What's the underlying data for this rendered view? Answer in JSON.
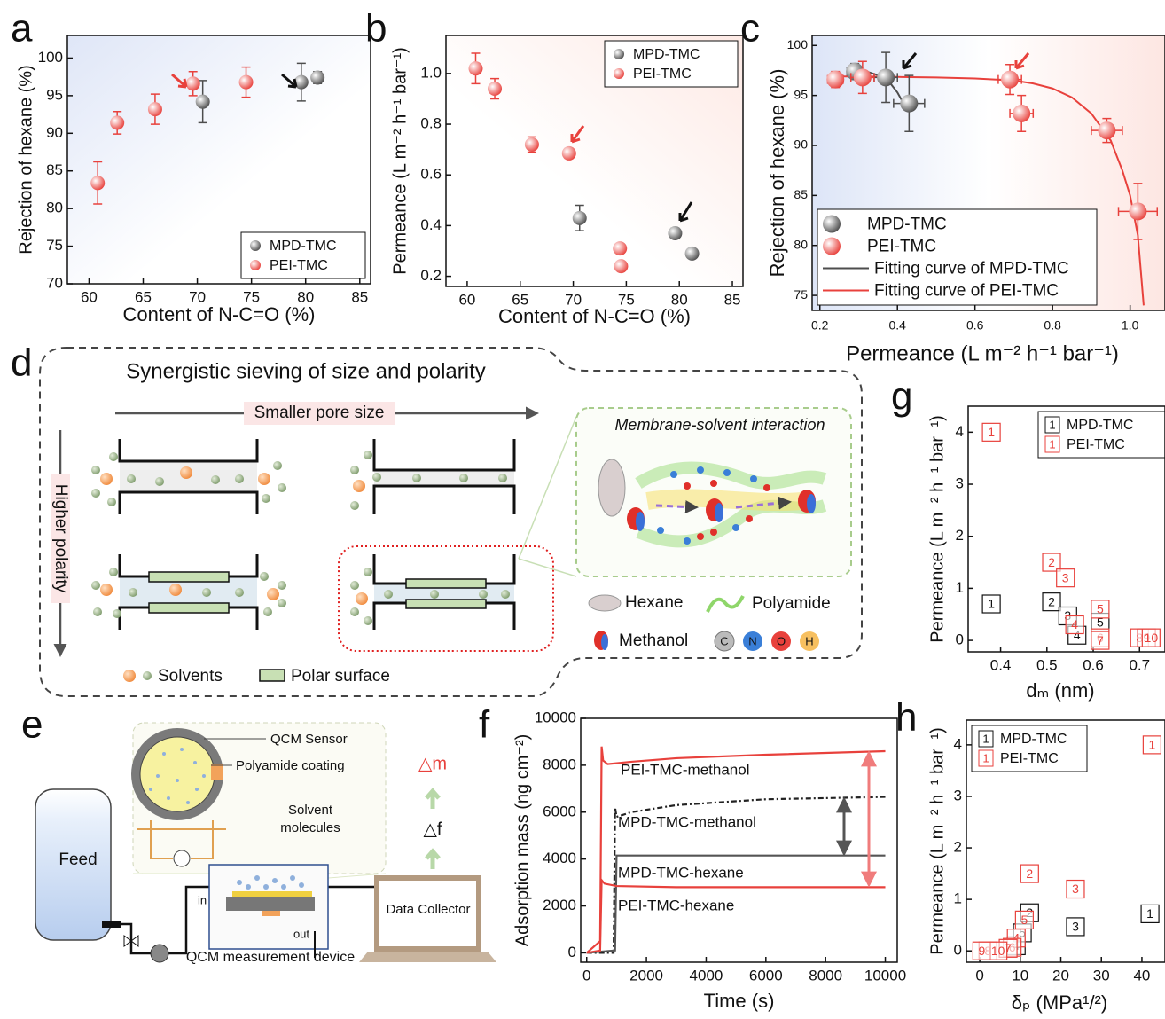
{
  "chart_data": [
    {
      "panel": "a",
      "type": "scatter",
      "marker": "sphere",
      "x_label": "Content of N-C=O (%)",
      "y_label": "Rejection of hexane (%)",
      "xlim": [
        58,
        86
      ],
      "ylim": [
        70,
        103
      ],
      "xticks": [
        60,
        65,
        70,
        75,
        80,
        85
      ],
      "yticks": [
        70,
        75,
        80,
        85,
        90,
        95,
        100
      ],
      "legend": "lower right",
      "series": [
        {
          "name": "MPD-TMC",
          "color": "#4d4d4d",
          "x": [
            70.5,
            79.6,
            81.1
          ],
          "values": [
            94.2,
            96.8,
            97.4
          ],
          "errors": [
            2.8,
            2.5,
            0.8
          ]
        },
        {
          "name": "PEI-TMC",
          "color": "#e8413c",
          "x": [
            60.8,
            62.6,
            66.1,
            69.6,
            74.5
          ],
          "values": [
            83.4,
            91.4,
            93.2,
            96.6,
            96.8
          ],
          "errors": [
            2.8,
            1.5,
            2.0,
            1.6,
            2.0
          ]
        }
      ]
    },
    {
      "panel": "b",
      "type": "scatter",
      "marker": "sphere",
      "x_label": "Content of N-C=O (%)",
      "y_label": "Permeance (L m⁻² h⁻¹ bar⁻¹)",
      "xlim": [
        58,
        86
      ],
      "ylim": [
        0.16,
        1.15
      ],
      "xticks": [
        60,
        65,
        70,
        75,
        80,
        85
      ],
      "yticks": [
        0.2,
        0.4,
        0.6,
        0.8,
        {
          "value": 1,
          "label": "1.0"
        }
      ],
      "legend": "upper right",
      "series": [
        {
          "name": "MPD-TMC",
          "color": "#4d4d4d",
          "x": [
            70.6,
            79.6,
            81.2
          ],
          "values": [
            0.43,
            0.37,
            0.29
          ],
          "errors": [
            0.05,
            0.02,
            null
          ]
        },
        {
          "name": "PEI-TMC",
          "color": "#e8413c",
          "x": [
            60.8,
            62.6,
            66.1,
            69.6,
            74.4,
            74.5
          ],
          "values": [
            1.02,
            0.94,
            0.72,
            0.685,
            0.31,
            0.24
          ],
          "errors": [
            0.06,
            0.04,
            0.03,
            0.02,
            null,
            null
          ]
        }
      ]
    },
    {
      "panel": "c",
      "type": "scatter",
      "marker": "sphere",
      "x_label": "Permeance (L m⁻² h⁻¹ bar⁻¹)",
      "y_label": "Rejection of hexane (%)",
      "xlim": [
        0.18,
        1.09
      ],
      "ylim": [
        73.5,
        101
      ],
      "xticks": [
        0.2,
        0.4,
        0.6,
        0.8,
        {
          "value": 1,
          "label": "1.0"
        }
      ],
      "yticks": [
        75,
        80,
        85,
        90,
        95,
        100
      ],
      "legend": "lower left",
      "series": [
        {
          "name": "MPD-TMC",
          "color": "#4d4d4d",
          "x": [
            0.29,
            0.37,
            0.43
          ],
          "values": [
            97.4,
            96.8,
            94.2
          ],
          "errors": [
            0.8,
            2.5,
            2.8
          ],
          "xerrors": [
            0.02,
            0.03,
            0.04
          ]
        },
        {
          "name": "PEI-TMC",
          "color": "#e8413c",
          "x": [
            0.24,
            0.31,
            0.69,
            0.72,
            0.94,
            1.02
          ],
          "values": [
            96.6,
            96.8,
            96.6,
            93.2,
            91.5,
            83.4
          ],
          "errors": [
            0.8,
            1.6,
            1.5,
            1.8,
            1.2,
            2.8
          ],
          "xerrors": [
            0.02,
            0.03,
            0.03,
            0.03,
            0.04,
            0.05
          ]
        }
      ],
      "curves": [
        {
          "name": "Fitting curve of MPD-TMC",
          "color": "#4d4d4d",
          "x": [
            0.28,
            0.32,
            0.36,
            0.38,
            0.4,
            0.42
          ],
          "values": [
            97.6,
            97.4,
            96.9,
            96.3,
            95.3,
            93.9
          ]
        },
        {
          "name": "Fitting curve of PEI-TMC",
          "color": "#e8413c",
          "x": [
            0.22,
            0.3,
            0.4,
            0.5,
            0.6,
            0.7,
            0.75,
            0.8,
            0.85,
            0.9,
            0.95,
            0.98,
            1.0,
            1.02,
            1.035
          ],
          "values": [
            96.9,
            96.9,
            96.85,
            96.8,
            96.7,
            96.5,
            96.2,
            95.7,
            94.8,
            93.2,
            90.5,
            87.5,
            85,
            81,
            74
          ]
        }
      ]
    },
    {
      "panel": "f",
      "type": "line",
      "x_label": "Time (s)",
      "y_label": "Adsorption mass (ng cm⁻²)",
      "xlim": [
        -200,
        10400
      ],
      "ylim": [
        -400,
        10000
      ],
      "xticks": [
        0,
        2000,
        4000,
        6000,
        8000,
        10000
      ],
      "yticks": [
        0,
        2000,
        4000,
        6000,
        8000,
        10000
      ],
      "series": [
        {
          "name": "PEI-TMC-methanol",
          "color": "#e8413c",
          "x": [
            0,
            450,
            500,
            550,
            700,
            1500,
            3000,
            6000,
            10000
          ],
          "values": [
            0,
            500,
            8800,
            8200,
            8050,
            8150,
            8300,
            8450,
            8600
          ]
        },
        {
          "name": "MPD-TMC-methanol",
          "color": "#222222",
          "dash": true,
          "x": [
            0,
            900,
            950,
            1000,
            1500,
            3000,
            6000,
            10000
          ],
          "values": [
            0,
            0,
            6200,
            5800,
            6000,
            6300,
            6550,
            6650
          ]
        },
        {
          "name": "MPD-TMC-hexane",
          "color": "#555555",
          "x": [
            0,
            950,
            1000,
            1500,
            10000
          ],
          "values": [
            0,
            100,
            4150,
            4150,
            4150
          ]
        },
        {
          "name": "PEI-TMC-hexane",
          "color": "#e8413c",
          "x": [
            0,
            450,
            500,
            600,
            1000,
            3000,
            10000
          ],
          "values": [
            0,
            100,
            3100,
            2950,
            2850,
            2800,
            2800
          ]
        }
      ]
    },
    {
      "panel": "g",
      "type": "scatter",
      "marker": "square",
      "x_label": "dₘ (nm)",
      "y_label": "Permeance (L m⁻² h⁻¹ bar⁻¹)",
      "xlim": [
        0.33,
        0.755
      ],
      "ylim": [
        -0.22,
        4.5
      ],
      "xticks": [
        0.4,
        0.5,
        0.6,
        0.7
      ],
      "yticks": [
        0,
        1,
        2,
        3,
        4
      ],
      "legend": "upper right",
      "series": [
        {
          "name": "MPD-TMC",
          "color": "#111111",
          "x": [
            0.38,
            0.51,
            0.545,
            0.565,
            0.615
          ],
          "values": [
            0.7,
            0.74,
            0.47,
            0.1,
            0.35
          ],
          "labels": [
            "1",
            "2",
            "3",
            "4",
            "5"
          ]
        },
        {
          "name": "PEI-TMC",
          "color": "#e8413c",
          "x": [
            0.38,
            0.51,
            0.54,
            0.56,
            0.615,
            0.615,
            0.615,
            0.7,
            0.715,
            0.725
          ],
          "values": [
            4.0,
            1.5,
            1.2,
            0.3,
            0.6,
            0.05,
            0.0,
            0.05,
            0.05,
            0.05
          ],
          "labels": [
            "1",
            "2",
            "3",
            "4",
            "5",
            "6",
            "7",
            "8",
            "9",
            "10"
          ]
        }
      ]
    },
    {
      "panel": "h",
      "type": "scatter",
      "marker": "square",
      "x_label": "δₚ (MPa¹/²)",
      "y_label": "Permeance (L m⁻² h⁻¹ bar⁻¹)",
      "xlim": [
        -3.3,
        45.7
      ],
      "ylim": [
        -0.22,
        4.48
      ],
      "xticks": [
        0,
        10,
        20,
        30,
        40
      ],
      "yticks": [
        0,
        1,
        2,
        3,
        4
      ],
      "legend": "upper left",
      "series": [
        {
          "name": "MPD-TMC",
          "color": "#111111",
          "x": [
            42,
            12.3,
            23.6,
            9,
            10.5
          ],
          "values": [
            0.72,
            0.74,
            0.47,
            0.1,
            0.35
          ],
          "labels": [
            "1",
            "2",
            "3",
            "4",
            "5"
          ]
        },
        {
          "name": "PEI-TMC",
          "color": "#e8413c",
          "x": [
            42.5,
            12.3,
            23.6,
            9,
            11,
            8,
            7,
            2,
            0.5,
            4.5
          ],
          "values": [
            4.0,
            1.5,
            1.2,
            0.25,
            0.6,
            0.07,
            0.05,
            0.0,
            0.0,
            0.0
          ],
          "labels": [
            "1",
            "2",
            "3",
            "4",
            "5",
            "6",
            "7",
            "8",
            "9",
            "10"
          ]
        }
      ]
    }
  ],
  "diagram_d": {
    "panel": "d",
    "title": "Synergistic sieving of size and polarity",
    "x_arrow": "Smaller pore size",
    "y_arrow": "Higher polarity",
    "inset_title": "Membrane-solvent interaction",
    "hexane": "Hexane",
    "polyamide": "Polyamide",
    "methanol": "Methanol",
    "atoms": [
      "C",
      "N",
      "O",
      "H"
    ],
    "solvents": "Solvents",
    "polar_surface": "Polar surface"
  },
  "diagram_e": {
    "panel": "e",
    "feed": "Feed",
    "sensor": "QCM Sensor",
    "coating": "Polyamide coating",
    "molecules": [
      "Solvent",
      "molecules"
    ],
    "device": "QCM measurement device",
    "collector": "Data Collector",
    "inlet": "in",
    "outlet": "out",
    "delta_m": "△m",
    "delta_f": "△f"
  }
}
